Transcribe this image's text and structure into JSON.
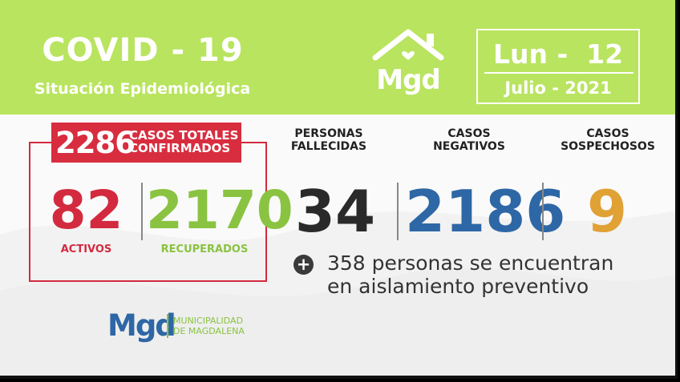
{
  "header": {
    "title": "COVID - 19",
    "subtitle": "Situación Epidemiológica",
    "logo_text": "Mgd",
    "date": {
      "day": "Lun -  12",
      "month_year": "Julio - 2021"
    }
  },
  "confirmed": {
    "total": "2286",
    "label_line1": "CASOS TOTALES",
    "label_line2": "CONFIRMADOS",
    "activos_value": "82",
    "activos_label": "ACTIVOS",
    "recuperados_value": "2170",
    "recuperados_label": "RECUPERADOS"
  },
  "stats": {
    "fallecidas_head1": "PERSONAS",
    "fallecidas_head2": "FALLECIDAS",
    "fallecidas_value": "34",
    "negativos_head1": "CASOS",
    "negativos_head2": "NEGATIVOS",
    "negativos_value": "2186",
    "sospechosos_head1": "CASOS",
    "sospechosos_head2": "SOSPECHOSOS",
    "sospechosos_value": "9"
  },
  "isolation": {
    "line1": "358 personas se encuentran",
    "line2": "en aislamiento preventivo"
  },
  "footer": {
    "logo_text": "Mgd",
    "line1": "MUNICIPALIDAD",
    "line2": "DE MAGDALENA"
  },
  "colors": {
    "header_bg": "#b9e45f",
    "red": "#d32a3f",
    "green": "#8ac341",
    "blue": "#2e67a5",
    "orange": "#e0a135",
    "dark": "#2a2a2a"
  }
}
